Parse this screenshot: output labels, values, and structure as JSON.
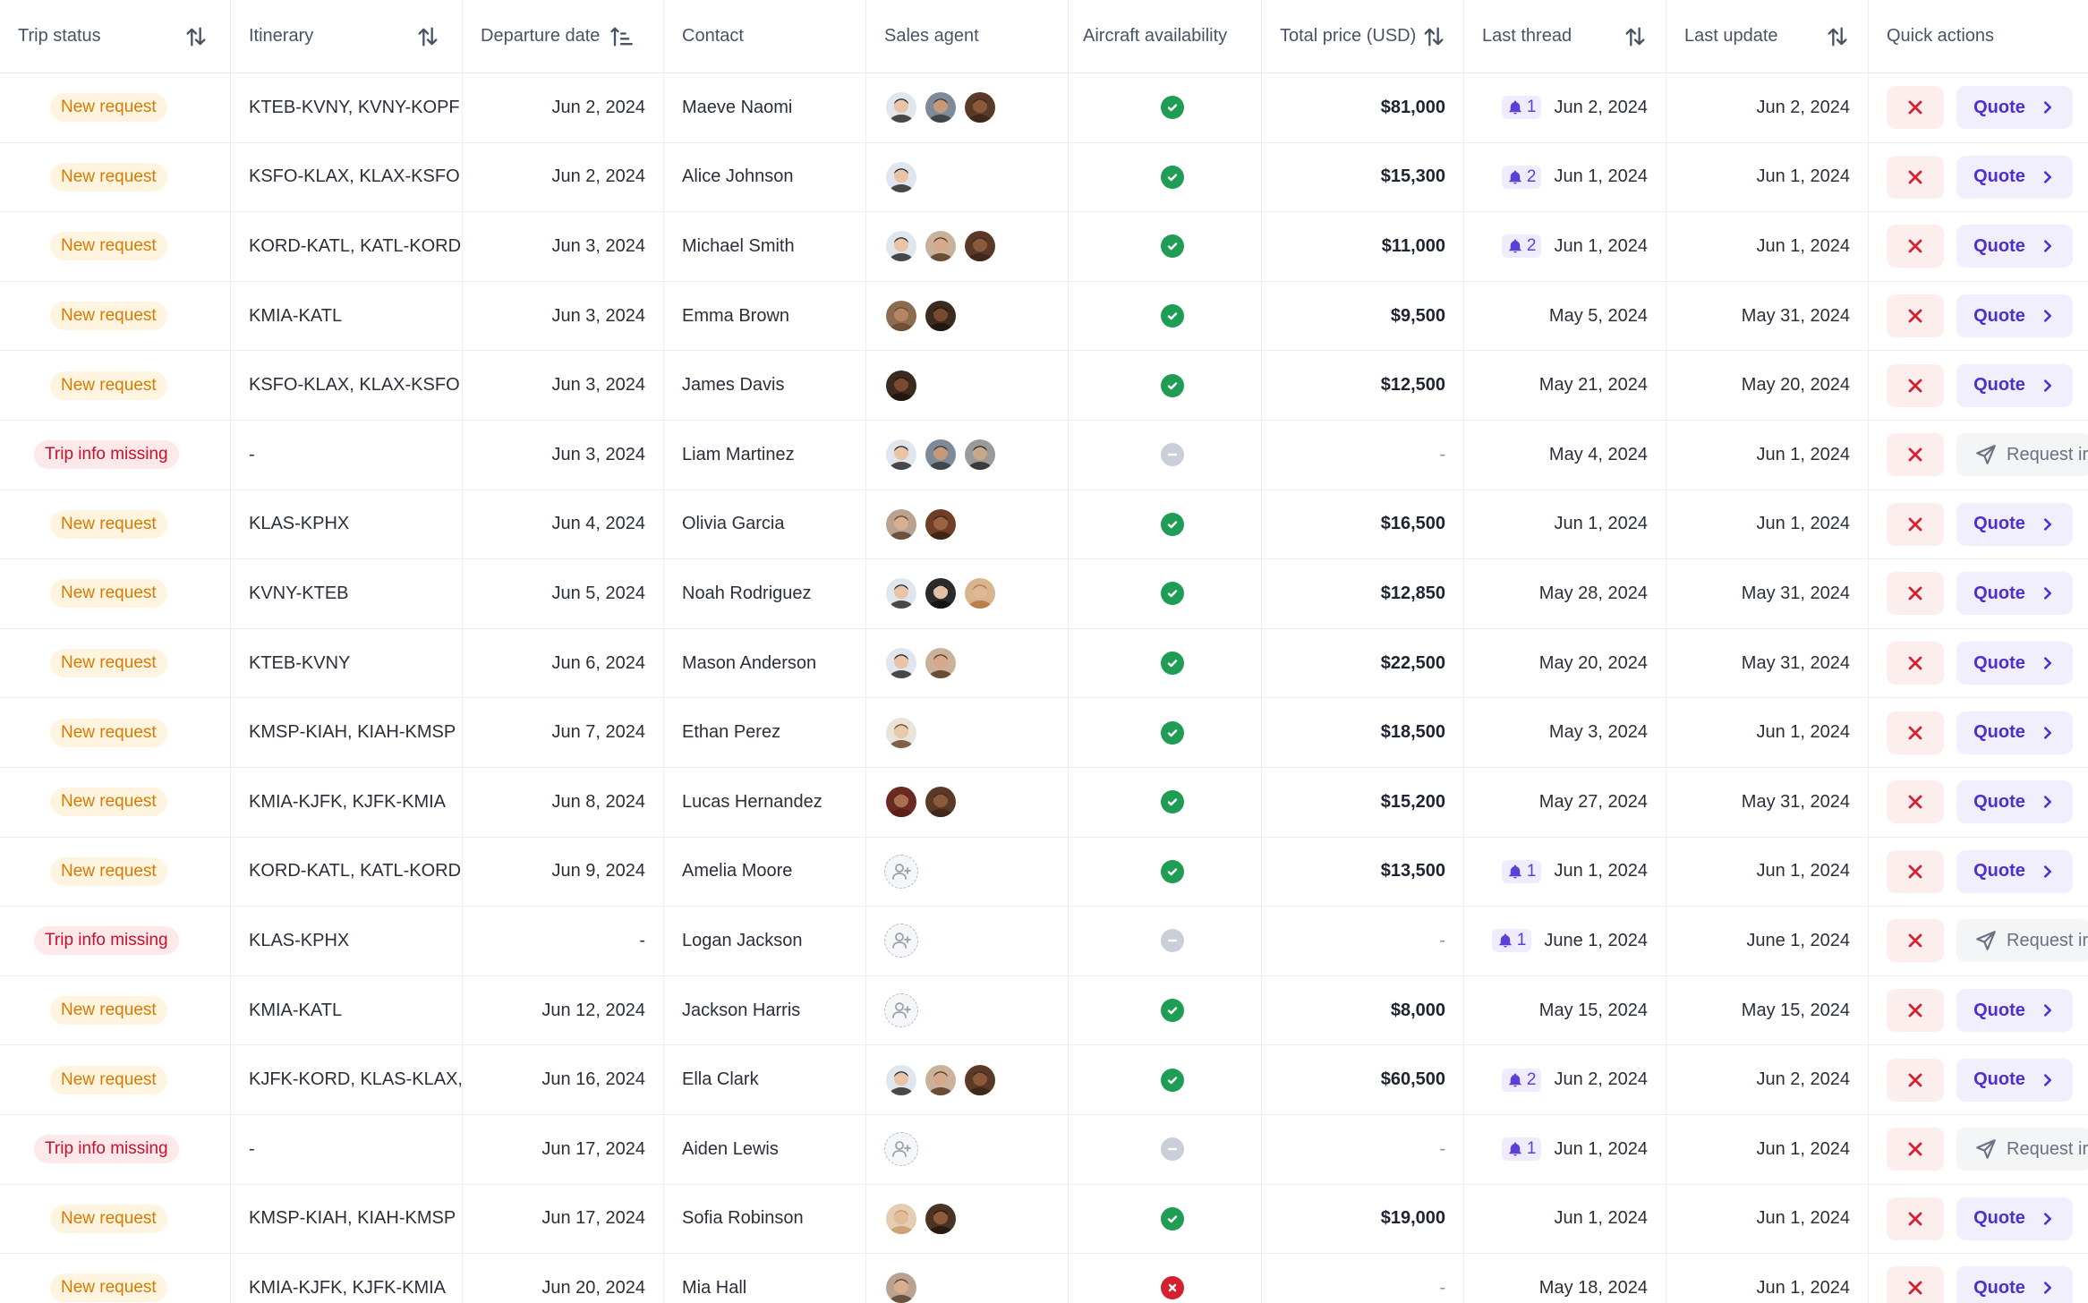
{
  "header": {
    "trip_status": "Trip status",
    "itinerary": "Itinerary",
    "departure_date": "Departure date",
    "contact": "Contact",
    "sales_agent": "Sales agent",
    "aircraft_availability": "Aircraft availability",
    "total_price": "Total price (USD)",
    "last_thread": "Last thread",
    "last_update": "Last update",
    "quick_actions": "Quick actions"
  },
  "labels": {
    "quote": "Quote",
    "request": "Request ir"
  },
  "colors": {
    "available": "#1f9d55",
    "unknown": "#c9ced8",
    "unavailable": "#d42030",
    "new_request": "#d97a00",
    "trip_info_missing": "#c8102e",
    "accent": "#4d2fd0"
  },
  "rows": [
    {
      "status": "New request",
      "status_type": "new",
      "itinerary": "KTEB-KVNY, KVNY-KOPF",
      "departure": "Jun 2, 2024",
      "contact": "Maeve Naomi",
      "agents": [
        "a1",
        "a2",
        "a3"
      ],
      "availability": "available",
      "price": "$81,000",
      "thread_count": "1",
      "thread_date": "Jun 2, 2024",
      "last_update": "Jun 2, 2024",
      "action": "quote"
    },
    {
      "status": "New request",
      "status_type": "new",
      "itinerary": "KSFO-KLAX, KLAX-KSFO",
      "departure": "Jun 2, 2024",
      "contact": "Alice Johnson",
      "agents": [
        "a1"
      ],
      "availability": "available",
      "price": "$15,300",
      "thread_count": "2",
      "thread_date": "Jun 1, 2024",
      "last_update": "Jun 1, 2024",
      "action": "quote"
    },
    {
      "status": "New request",
      "status_type": "new",
      "itinerary": "KORD-KATL, KATL-KORD",
      "departure": "Jun 3, 2024",
      "contact": "Michael Smith",
      "agents": [
        "a1",
        "a4",
        "a3"
      ],
      "availability": "available",
      "price": "$11,000",
      "thread_count": "2",
      "thread_date": "Jun 1, 2024",
      "last_update": "Jun 1, 2024",
      "action": "quote"
    },
    {
      "status": "New request",
      "status_type": "new",
      "itinerary": "KMIA-KATL",
      "departure": "Jun 3, 2024",
      "contact": "Emma Brown",
      "agents": [
        "a5",
        "a6"
      ],
      "availability": "available",
      "price": "$9,500",
      "thread_count": "",
      "thread_date": "May 5, 2024",
      "last_update": "May 31, 2024",
      "action": "quote"
    },
    {
      "status": "New request",
      "status_type": "new",
      "itinerary": "KSFO-KLAX, KLAX-KSFO",
      "departure": "Jun 3, 2024",
      "contact": "James Davis",
      "agents": [
        "a6"
      ],
      "availability": "available",
      "price": "$12,500",
      "thread_count": "",
      "thread_date": "May 21, 2024",
      "last_update": "May 20, 2024",
      "action": "quote"
    },
    {
      "status": "Trip info missing",
      "status_type": "missing",
      "itinerary": "-",
      "departure": "Jun 3, 2024",
      "contact": "Liam Martinez",
      "agents": [
        "a1",
        "a2",
        "a7"
      ],
      "availability": "unknown",
      "price": "-",
      "thread_count": "",
      "thread_date": "May 4, 2024",
      "last_update": "Jun 1, 2024",
      "action": "request"
    },
    {
      "status": "New request",
      "status_type": "new",
      "itinerary": "KLAS-KPHX",
      "departure": "Jun 4, 2024",
      "contact": "Olivia Garcia",
      "agents": [
        "a8",
        "a9"
      ],
      "availability": "available",
      "price": "$16,500",
      "thread_count": "",
      "thread_date": "Jun 1, 2024",
      "last_update": "Jun 1, 2024",
      "action": "quote"
    },
    {
      "status": "New request",
      "status_type": "new",
      "itinerary": "KVNY-KTEB",
      "departure": "Jun 5, 2024",
      "contact": "Noah Rodriguez",
      "agents": [
        "a1",
        "a10",
        "a11"
      ],
      "availability": "available",
      "price": "$12,850",
      "thread_count": "",
      "thread_date": "May 28, 2024",
      "last_update": "May 31, 2024",
      "action": "quote"
    },
    {
      "status": "New request",
      "status_type": "new",
      "itinerary": "KTEB-KVNY",
      "departure": "Jun 6, 2024",
      "contact": "Mason Anderson",
      "agents": [
        "a1",
        "a4"
      ],
      "availability": "available",
      "price": "$22,500",
      "thread_count": "",
      "thread_date": "May 20, 2024",
      "last_update": "May 31, 2024",
      "action": "quote"
    },
    {
      "status": "New request",
      "status_type": "new",
      "itinerary": "KMSP-KIAH, KIAH-KMSP",
      "departure": "Jun 7, 2024",
      "contact": "Ethan Perez",
      "agents": [
        "a12"
      ],
      "availability": "available",
      "price": "$18,500",
      "thread_count": "",
      "thread_date": "May 3, 2024",
      "last_update": "Jun 1, 2024",
      "action": "quote"
    },
    {
      "status": "New request",
      "status_type": "new",
      "itinerary": "KMIA-KJFK, KJFK-KMIA",
      "departure": "Jun 8, 2024",
      "contact": "Lucas Hernandez",
      "agents": [
        "a13",
        "a3"
      ],
      "availability": "available",
      "price": "$15,200",
      "thread_count": "",
      "thread_date": "May 27, 2024",
      "last_update": "May 31, 2024",
      "action": "quote"
    },
    {
      "status": "New request",
      "status_type": "new",
      "itinerary": "KORD-KATL, KATL-KORD",
      "departure": "Jun 9, 2024",
      "contact": "Amelia Moore",
      "agents": [
        "empty"
      ],
      "availability": "available",
      "price": "$13,500",
      "thread_count": "1",
      "thread_date": "Jun 1, 2024",
      "last_update": "Jun 1, 2024",
      "action": "quote"
    },
    {
      "status": "Trip info missing",
      "status_type": "missing",
      "itinerary": "KLAS-KPHX",
      "departure": "-",
      "contact": "Logan Jackson",
      "agents": [
        "empty"
      ],
      "availability": "unknown",
      "price": "-",
      "thread_count": "1",
      "thread_date": "June 1, 2024",
      "last_update": "June 1, 2024",
      "action": "request"
    },
    {
      "status": "New request",
      "status_type": "new",
      "itinerary": "KMIA-KATL",
      "departure": "Jun 12, 2024",
      "contact": "Jackson Harris",
      "agents": [
        "empty"
      ],
      "availability": "available",
      "price": "$8,000",
      "thread_count": "",
      "thread_date": "May 15, 2024",
      "last_update": "May 15, 2024",
      "action": "quote"
    },
    {
      "status": "New request",
      "status_type": "new",
      "itinerary": "KJFK-KORD, KLAS-KLAX, KLA",
      "departure": "Jun 16, 2024",
      "contact": "Ella Clark",
      "agents": [
        "a1",
        "a4",
        "a3"
      ],
      "availability": "available",
      "price": "$60,500",
      "thread_count": "2",
      "thread_date": "Jun 2, 2024",
      "last_update": "Jun 2, 2024",
      "action": "quote"
    },
    {
      "status": "Trip info missing",
      "status_type": "missing",
      "itinerary": "-",
      "departure": "Jun 17, 2024",
      "contact": "Aiden Lewis",
      "agents": [
        "empty"
      ],
      "availability": "unknown",
      "price": "-",
      "thread_count": "1",
      "thread_date": "Jun 1, 2024",
      "last_update": "Jun 1, 2024",
      "action": "request"
    },
    {
      "status": "New request",
      "status_type": "new",
      "itinerary": "KMSP-KIAH, KIAH-KMSP",
      "departure": "Jun 17, 2024",
      "contact": "Sofia Robinson",
      "agents": [
        "a14",
        "a15"
      ],
      "availability": "available",
      "price": "$19,000",
      "thread_count": "",
      "thread_date": "Jun 1, 2024",
      "last_update": "Jun 1, 2024",
      "action": "quote"
    },
    {
      "status": "New request",
      "status_type": "new",
      "itinerary": "KMIA-KJFK, KJFK-KMIA",
      "departure": "Jun 20, 2024",
      "contact": "Mia Hall",
      "agents": [
        "a8"
      ],
      "availability": "unavailable",
      "price": "-",
      "thread_count": "",
      "thread_date": "May 18, 2024",
      "last_update": "Jun 1, 2024",
      "action": "quote"
    }
  ],
  "avatar_palette": {
    "a1": {
      "skin": "#e9c4a6",
      "hair": "#2b2b2b",
      "bg": "#dfe6ee"
    },
    "a2": {
      "skin": "#c99877",
      "hair": "#3a3a3a",
      "bg": "#7c8a99"
    },
    "a3": {
      "skin": "#8a5a3b",
      "hair": "#3d2417",
      "bg": "#5a3a26"
    },
    "a4": {
      "skin": "#d6a98a",
      "hair": "#5a3b24",
      "bg": "#c9b19b"
    },
    "a5": {
      "skin": "#b78566",
      "hair": "#6b4a2f",
      "bg": "#8c6b50"
    },
    "a6": {
      "skin": "#7a4a2e",
      "hair": "#1f140d",
      "bg": "#3b2a1f"
    },
    "a7": {
      "skin": "#c8a88a",
      "hair": "#2a2a2a",
      "bg": "#9a9a9a"
    },
    "a8": {
      "skin": "#d8b090",
      "hair": "#5e4530",
      "bg": "#b7a38f"
    },
    "a9": {
      "skin": "#9a6444",
      "hair": "#3a2010",
      "bg": "#6e3f26"
    },
    "a10": {
      "skin": "#e3c0a4",
      "hair": "#111111",
      "bg": "#2a2a2a"
    },
    "a11": {
      "skin": "#e0b896",
      "hair": "#b5773f",
      "bg": "#d7b58f"
    },
    "a12": {
      "skin": "#e8c9ab",
      "hair": "#6b4a2e",
      "bg": "#e9e3da"
    },
    "a13": {
      "skin": "#a8704e",
      "hair": "#5a1f16",
      "bg": "#6a2a22"
    },
    "a14": {
      "skin": "#e2bb98",
      "hair": "#c99a6a",
      "bg": "#e4cdb2"
    },
    "a15": {
      "skin": "#8f5a3a",
      "hair": "#24150d",
      "bg": "#4a3324"
    }
  }
}
